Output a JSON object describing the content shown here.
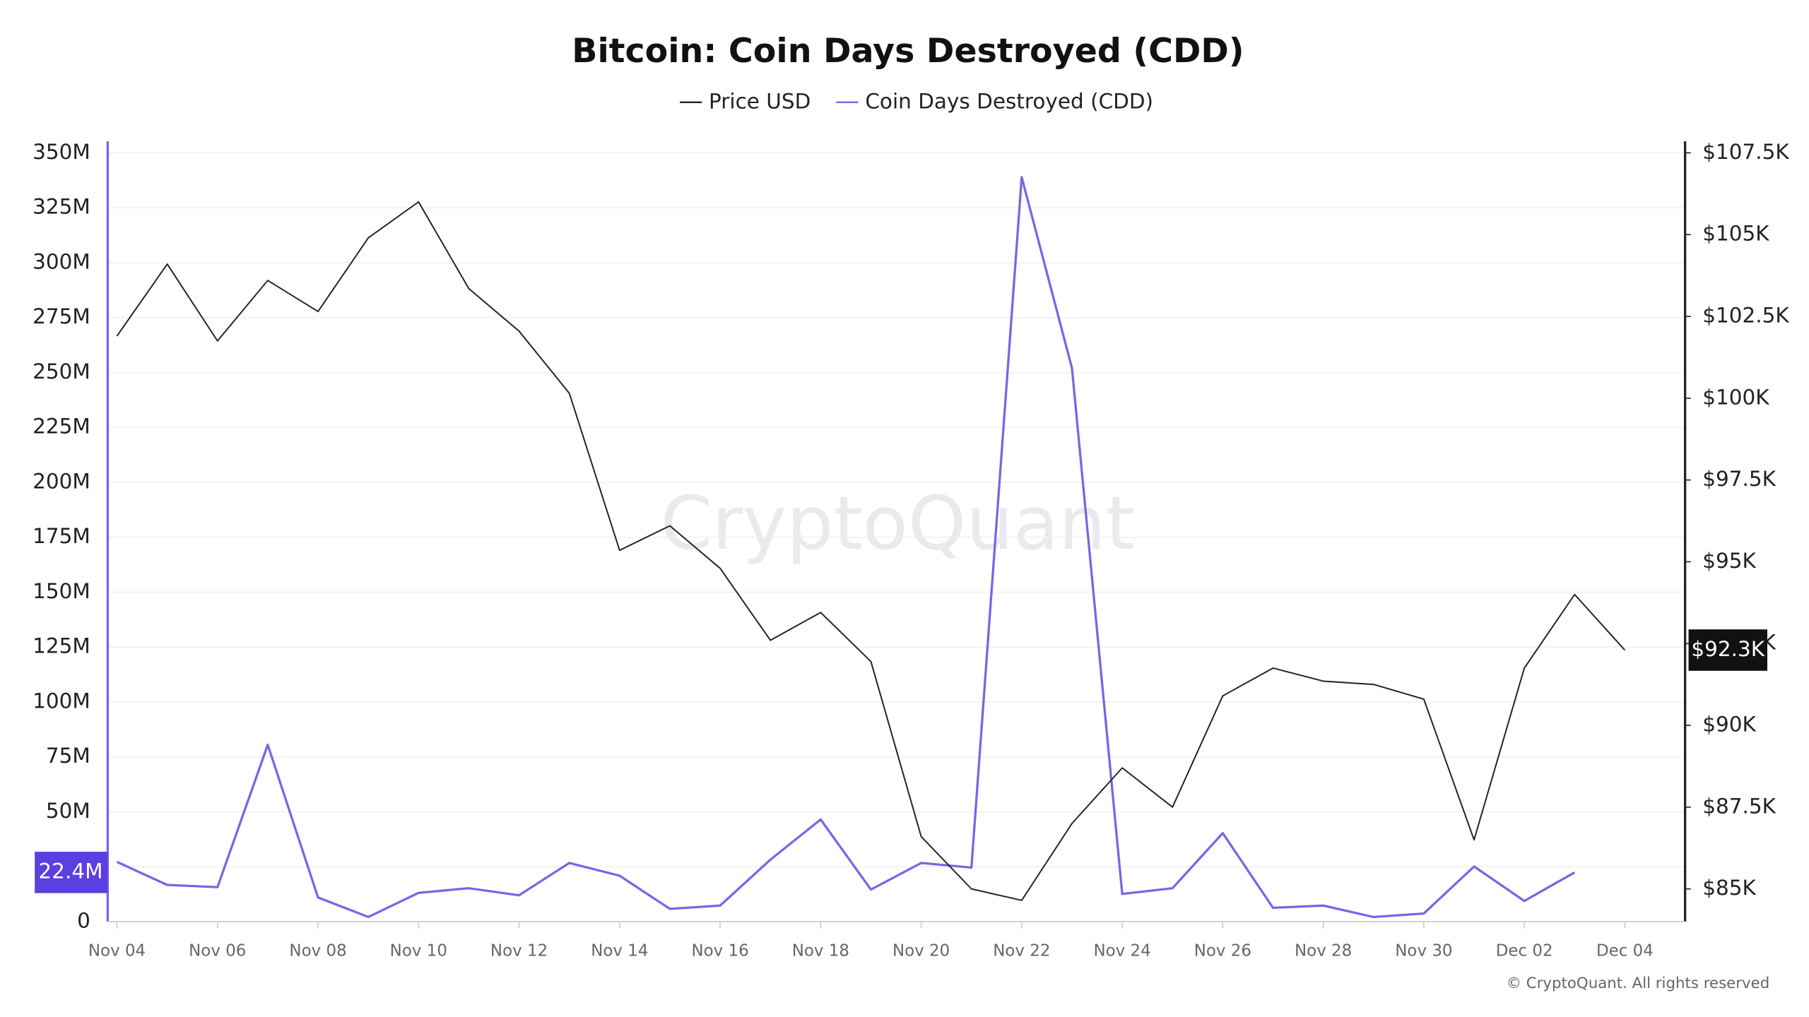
{
  "chart_data": {
    "type": "line",
    "title": "Bitcoin: Coin Days Destroyed (CDD)",
    "watermark": "CryptoQuant",
    "footer": "© CryptoQuant. All rights reserved",
    "categories": [
      "Nov 04",
      null,
      "Nov 06",
      null,
      "Nov 08",
      null,
      "Nov 10",
      null,
      "Nov 12",
      null,
      "Nov 14",
      null,
      "Nov 16",
      null,
      "Nov 18",
      null,
      "Nov 20",
      null,
      "Nov 22",
      null,
      "Nov 24",
      null,
      "Nov 26",
      null,
      "Nov 28",
      null,
      "Nov 30",
      null,
      "Dec 02",
      null,
      "Dec 04"
    ],
    "series": [
      {
        "name": "Price USD",
        "color": "#222222",
        "axis": "y2",
        "values": [
          101900,
          104100,
          101750,
          103600,
          102650,
          104900,
          106000,
          103350,
          102050,
          100150,
          95350,
          96100,
          94800,
          92600,
          93450,
          91950,
          86600,
          85000,
          84650,
          87000,
          88700,
          87500,
          90900,
          91750,
          91350,
          91250,
          90800,
          86500,
          91750,
          94000,
          92300
        ],
        "value_labels": [
          null,
          null,
          null,
          null,
          null,
          null,
          null,
          null,
          null,
          null,
          null,
          null,
          null,
          null,
          null,
          null,
          null,
          null,
          null,
          null,
          null,
          null,
          null,
          null,
          null,
          null,
          null,
          null,
          null,
          null,
          "$92.3K"
        ]
      },
      {
        "name": "Coin Days Destroyed (CDD)",
        "color": "#7b64e8",
        "values": [
          27200000,
          16700000,
          15700000,
          80500000,
          11000000,
          2100000,
          13100000,
          15200000,
          12000000,
          26700000,
          20900000,
          5800000,
          7300000,
          28200000,
          46500000,
          14600000,
          26700000,
          24600000,
          338900000,
          252000000,
          12600000,
          15200000,
          40300000,
          6300000,
          7300000,
          2100000,
          3700000,
          25100000,
          9400000,
          22400000,
          null
        ],
        "value_labels": [
          null,
          null,
          null,
          null,
          null,
          null,
          null,
          null,
          null,
          null,
          null,
          null,
          null,
          null,
          null,
          null,
          null,
          null,
          null,
          null,
          null,
          null,
          null,
          null,
          null,
          null,
          null,
          null,
          null,
          "22.4M",
          null
        ]
      }
    ],
    "ylim": [
      0,
      350000000
    ],
    "yticks": [
      0,
      {
        "value": 25000000,
        "label": "25M"
      },
      {
        "value": 50000000,
        "label": "50M"
      },
      {
        "value": 75000000,
        "label": "75M"
      },
      {
        "value": 100000000,
        "label": "100M"
      },
      {
        "value": 125000000,
        "label": "125M"
      },
      {
        "value": 150000000,
        "label": "150M"
      },
      {
        "value": 175000000,
        "label": "175M"
      },
      {
        "value": 200000000,
        "label": "200M"
      },
      {
        "value": 225000000,
        "label": "225M"
      },
      {
        "value": 250000000,
        "label": "250M"
      },
      {
        "value": 275000000,
        "label": "275M"
      },
      {
        "value": 300000000,
        "label": "300M"
      },
      {
        "value": 325000000,
        "label": "325M"
      },
      {
        "value": 350000000,
        "label": "350M"
      }
    ],
    "y2lim": [
      84000,
      107500
    ],
    "y2ticks": [
      {
        "value": 85000,
        "label": "$85K"
      },
      {
        "value": 87500,
        "label": "$87.5K"
      },
      {
        "value": 90000,
        "label": "$90K"
      },
      {
        "value": 92500,
        "label": "$92.5K"
      },
      {
        "value": 95000,
        "label": "$95K"
      },
      {
        "value": 97500,
        "label": "$97.5K"
      },
      {
        "value": 100000,
        "label": "$100K"
      },
      {
        "value": 102500,
        "label": "$102.5K"
      },
      {
        "value": 105000,
        "label": "$105K"
      },
      {
        "value": 107500,
        "label": "$107.5K"
      }
    ],
    "grid": true,
    "legend": "top"
  }
}
